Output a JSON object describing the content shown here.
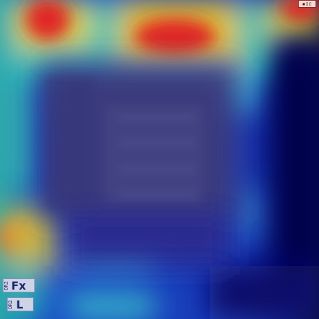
{
  "image": {
    "description_kind": "radiograph-heatmap-overlay",
    "colormap": "jet",
    "colors": {
      "background": "#0a0a5c",
      "hot": "#e0302a",
      "warm": "#f0c020",
      "mid": "#30c0c8",
      "cool": "#2040d0",
      "cold": "#08085a"
    }
  },
  "markers": {
    "fx": {
      "small": "DR2",
      "label": "Fx"
    },
    "side": {
      "small": "DR2",
      "label": "L"
    },
    "corner": {
      "label": "▪▯▯"
    }
  }
}
